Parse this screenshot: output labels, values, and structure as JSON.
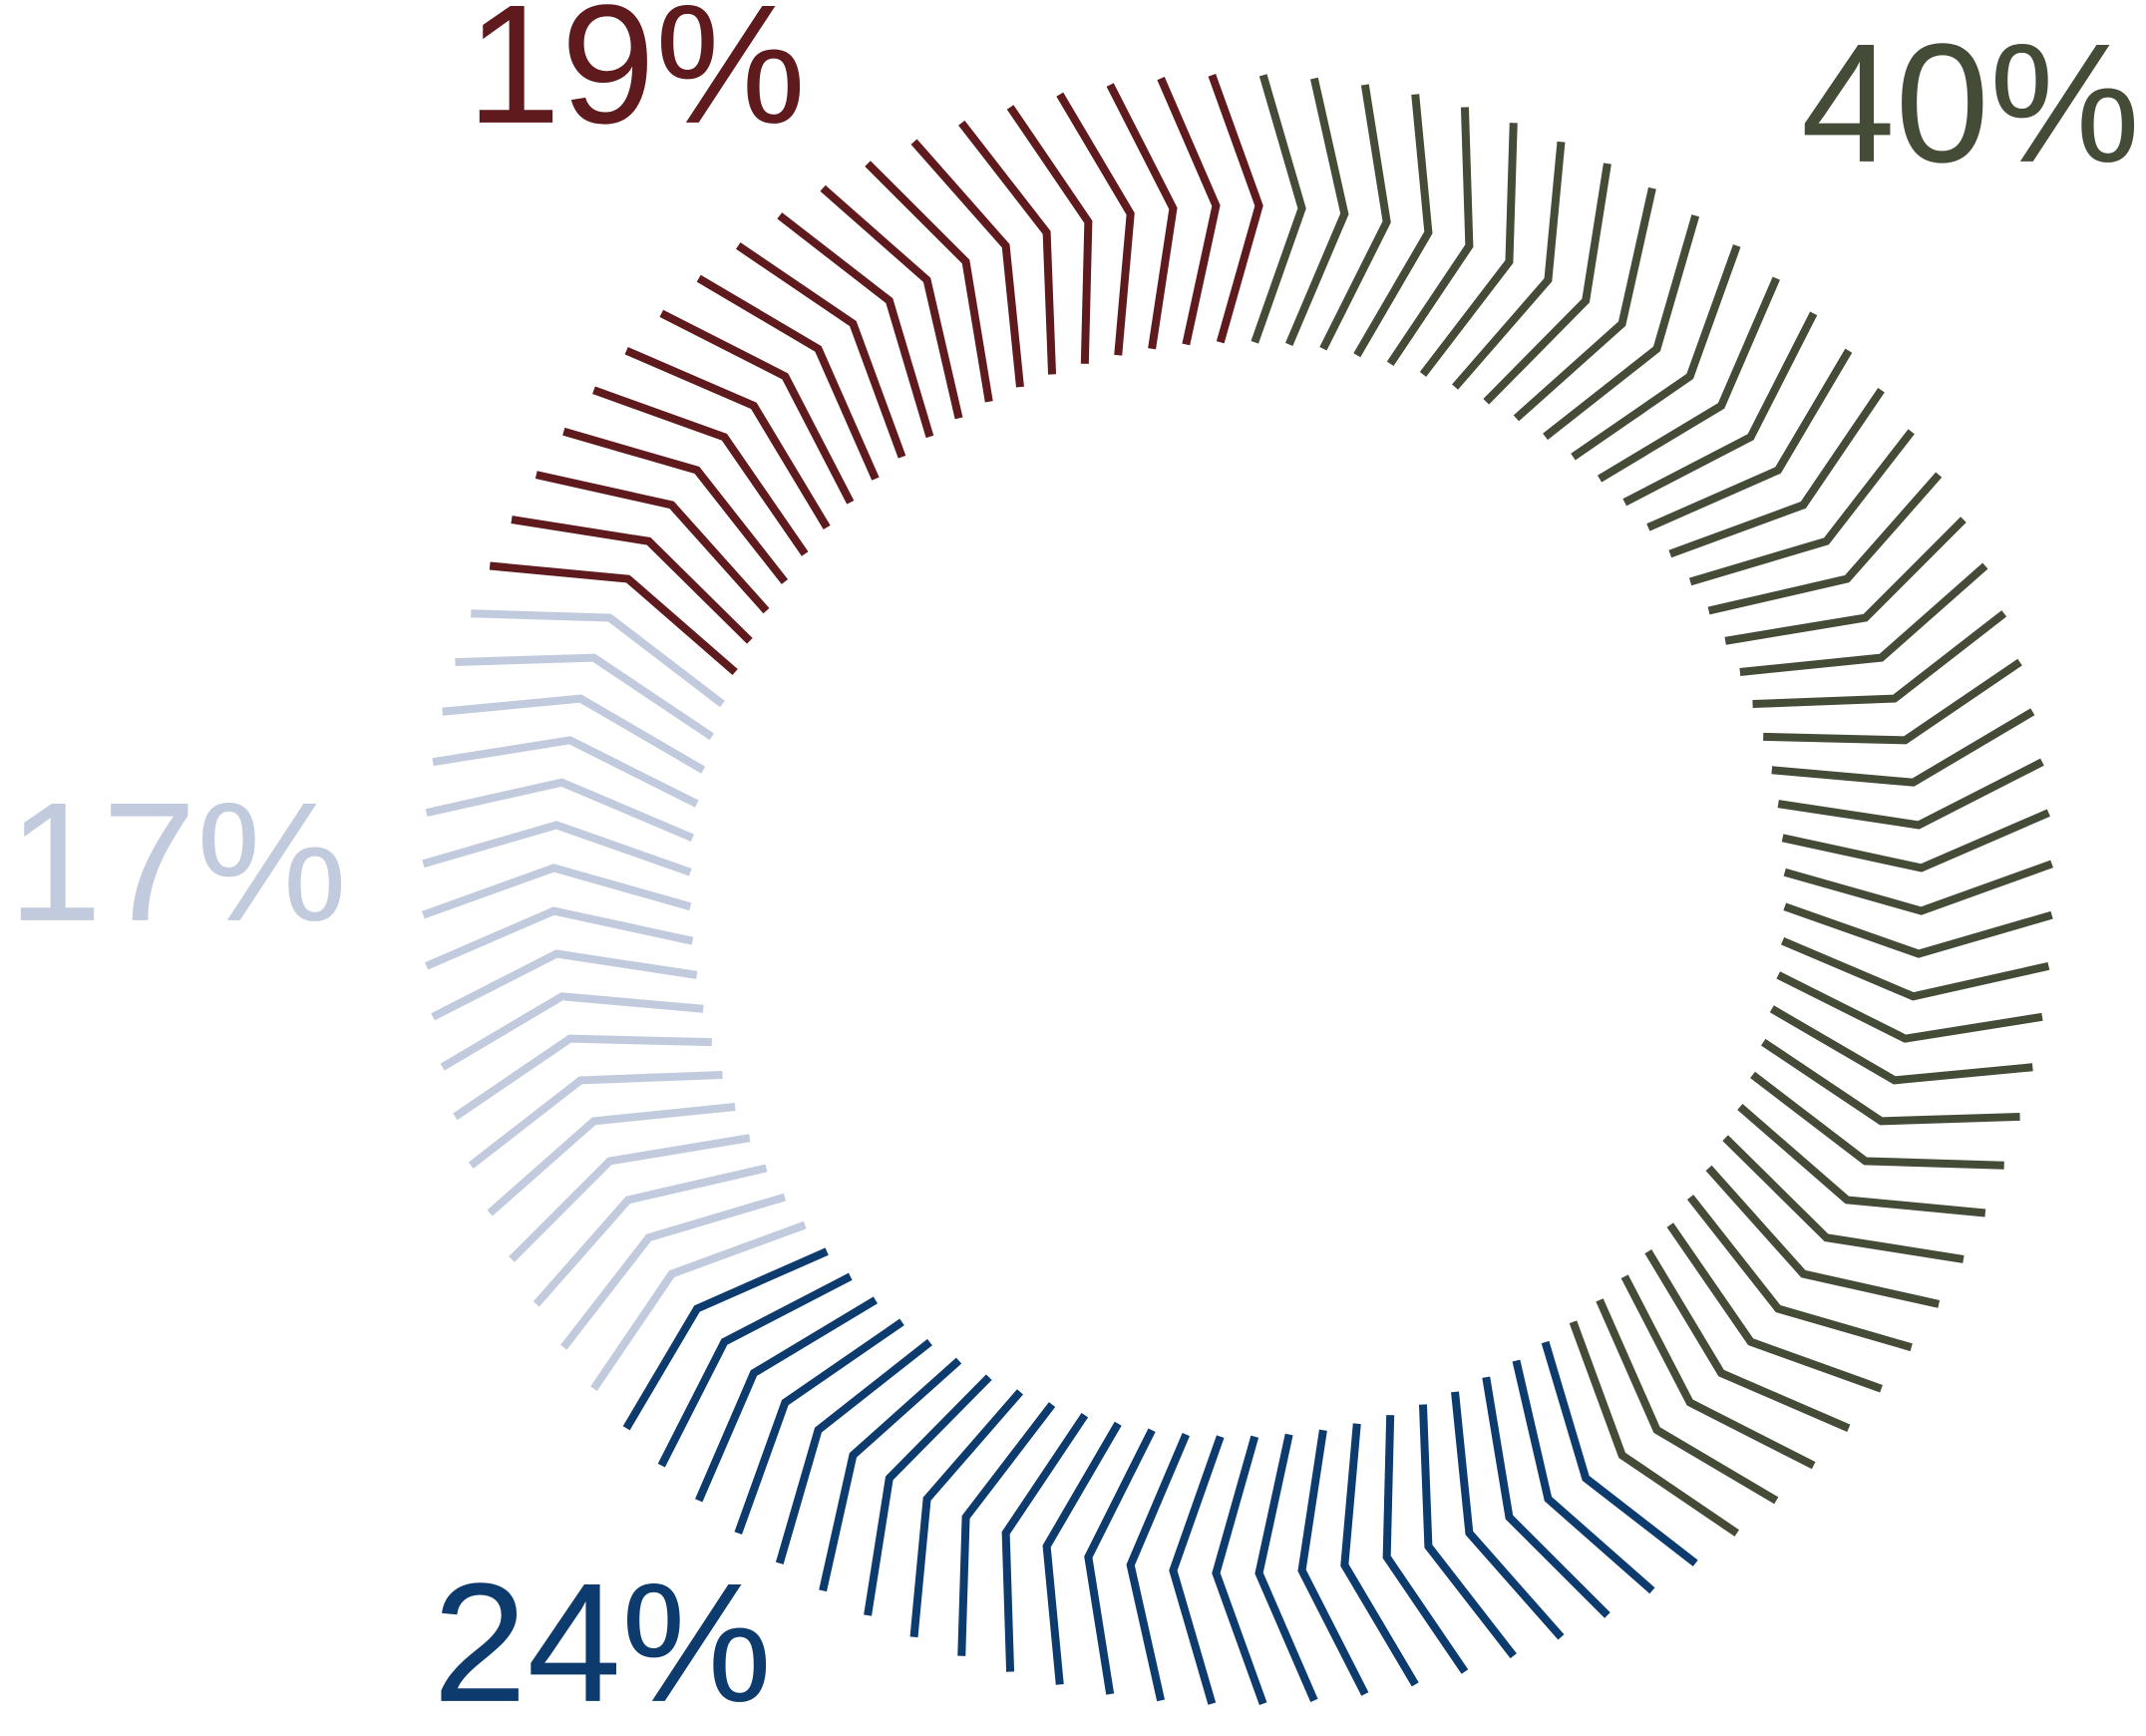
{
  "chart_data": {
    "type": "donut",
    "values": [
      40,
      24,
      17,
      19
    ],
    "value_labels": [
      "40%",
      "24%",
      "17%",
      "19%"
    ],
    "colors": [
      "#444b37",
      "#0d3b6e",
      "#c1cbdd",
      "#5e1a1c"
    ]
  }
}
